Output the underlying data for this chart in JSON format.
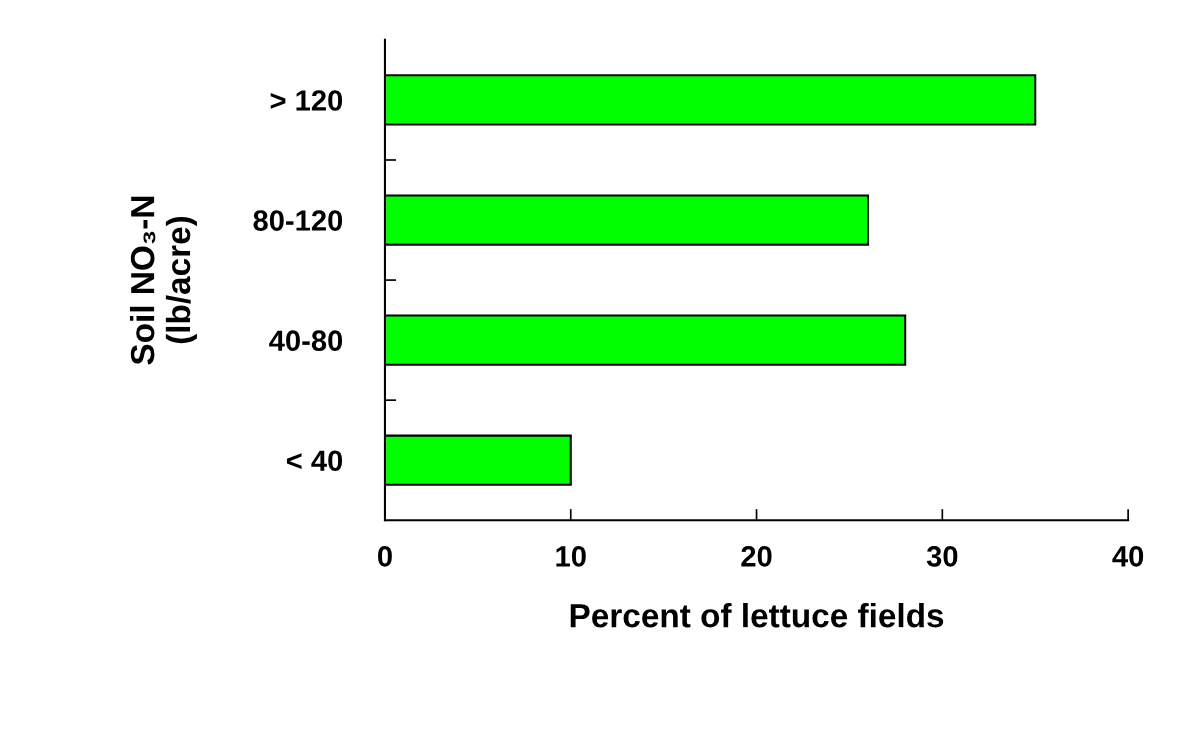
{
  "chart_data": {
    "type": "bar",
    "orientation": "horizontal",
    "categories": [
      "> 120",
      "80-120",
      "40-80",
      "< 40"
    ],
    "values": [
      35,
      26,
      28,
      10
    ],
    "color": "#00ff00",
    "xlabel": "Percent of lettuce fields",
    "ylabel": "Soil NO₃-N\n(lb/acre)",
    "xlim": [
      0,
      40
    ],
    "xticks": [
      0,
      10,
      20,
      30,
      40
    ],
    "grid": false,
    "legend": false
  }
}
